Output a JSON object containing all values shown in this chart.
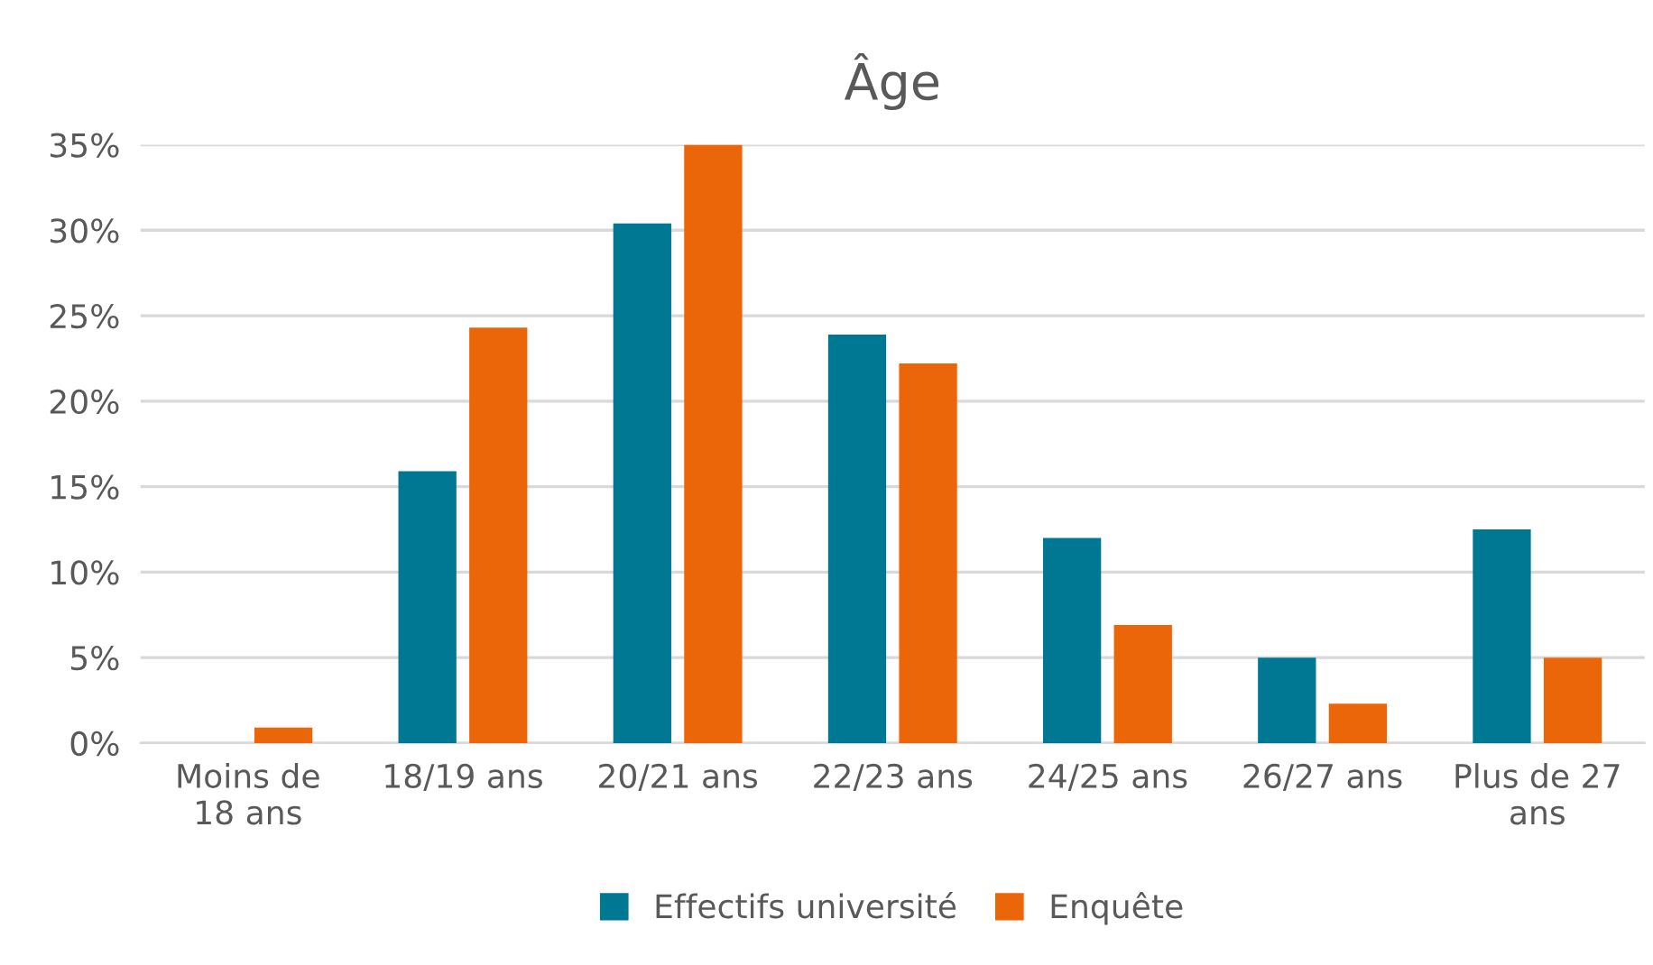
{
  "chart_data": {
    "type": "bar",
    "title": "Âge",
    "categories": [
      "Moins de 18 ans",
      "18/19 ans",
      "20/21 ans",
      "22/23 ans",
      "24/25 ans",
      "26/27 ans",
      "Plus de 27 ans"
    ],
    "series": [
      {
        "name": "Effectifs université",
        "color": "#007894",
        "values": [
          0,
          15.9,
          30.4,
          23.9,
          12.0,
          5.0,
          12.5
        ]
      },
      {
        "name": "Enquête",
        "color": "#eb6608",
        "values": [
          0.9,
          24.3,
          35,
          22.2,
          6.9,
          2.3,
          5.0
        ]
      }
    ],
    "ylim": [
      0,
      35
    ],
    "yticks": [
      {
        "value": 0,
        "label": "0%"
      },
      {
        "value": 5,
        "label": "5%"
      },
      {
        "value": 10,
        "label": "10%"
      },
      {
        "value": 15,
        "label": "15%"
      },
      {
        "value": 20,
        "label": "20%"
      },
      {
        "value": 25,
        "label": "25%"
      },
      {
        "value": 30,
        "label": "30%"
      },
      {
        "value": 35,
        "label": "35%"
      }
    ],
    "grid": "y",
    "legend": "bottom"
  }
}
